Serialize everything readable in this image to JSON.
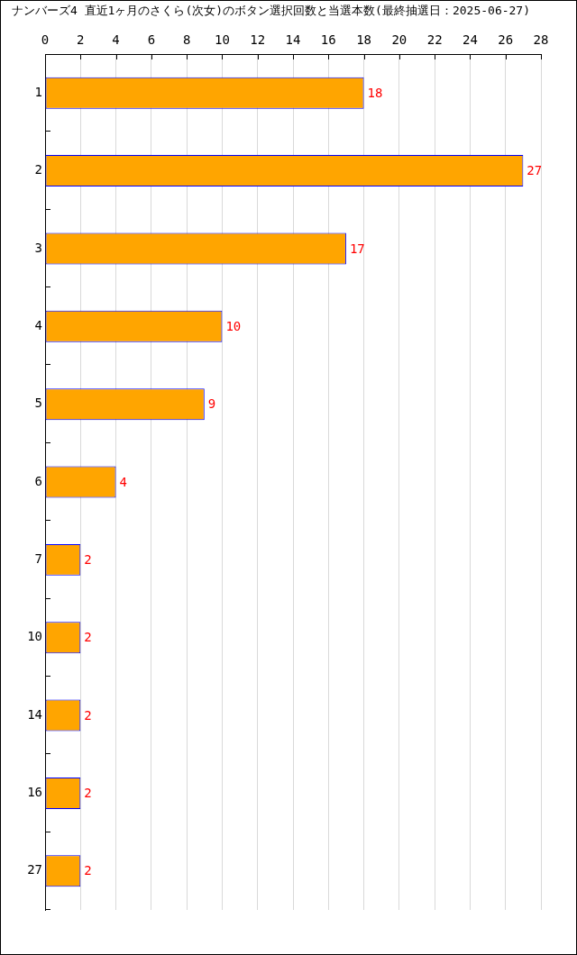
{
  "chart_data": {
    "type": "bar",
    "orientation": "horizontal",
    "title": "ナンバーズ4 直近1ヶ月のさくら(次女)のボタン選択回数と当選本数(最終抽選日：2025-06-27)",
    "categories": [
      "1",
      "2",
      "3",
      "4",
      "5",
      "6",
      "7",
      "10",
      "14",
      "16",
      "27"
    ],
    "values": [
      18,
      27,
      17,
      10,
      9,
      4,
      2,
      2,
      2,
      2,
      2
    ],
    "color": "#ffa500",
    "xlim": [
      0,
      28
    ],
    "xticks": [
      0,
      2,
      4,
      6,
      8,
      10,
      12,
      14,
      16,
      18,
      20,
      22,
      24,
      26,
      28
    ],
    "grid": "x",
    "data_labels": true
  }
}
